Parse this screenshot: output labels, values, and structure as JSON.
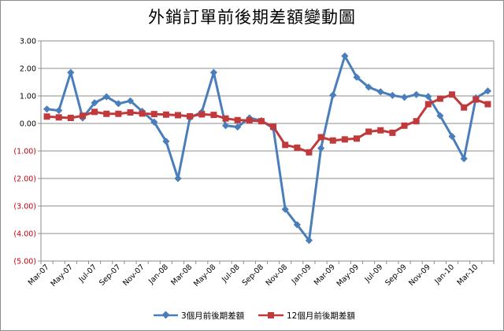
{
  "chart_data": {
    "type": "line",
    "title": "外銷訂單前後期差額變動圖",
    "ylim": [
      -5,
      3
    ],
    "y_ticks": [
      3,
      2,
      1,
      0,
      -1,
      -2,
      -3,
      -4,
      -5
    ],
    "y_tick_labels": [
      "3.00",
      "2.00",
      "1.00",
      "0.00",
      "(1.00)",
      "(2.00)",
      "(3.00)",
      "(4.00)",
      "(5.00)"
    ],
    "categories": [
      "Mar-07",
      "Apr-07",
      "May-07",
      "Jun-07",
      "Jul-07",
      "Aug-07",
      "Sep-07",
      "Oct-07",
      "Nov-07",
      "Dec-07",
      "Jan-08",
      "Feb-08",
      "Mar-08",
      "Apr-08",
      "May-08",
      "Jun-08",
      "Jul-08",
      "Aug-08",
      "Sep-08",
      "Oct-08",
      "Nov-08",
      "Dec-08",
      "Jan-09",
      "Feb-09",
      "Mar-09",
      "Apr-09",
      "May-09",
      "Jun-09",
      "Jul-09",
      "Aug-09",
      "Sep-09",
      "Oct-09",
      "Nov-09",
      "Dec-09",
      "Jan-10",
      "Feb-10",
      "Mar-10",
      "Apr-10"
    ],
    "x_tick_labels": [
      "Mar-07",
      "May-07",
      "Jul-07",
      "Sep-07",
      "Nov-07",
      "Jan-08",
      "Mar-08",
      "May-08",
      "Jul-08",
      "Sep-08",
      "Nov-08",
      "Jan-09",
      "Mar-09",
      "May-09",
      "Jul-09",
      "Sep-09",
      "Nov-09",
      "Jan-10",
      "Mar-10"
    ],
    "grid": true,
    "legend_position": "bottom",
    "series": [
      {
        "name": "3個月前後期差額",
        "color": "#4a7ebb",
        "marker": "diamond",
        "values": [
          0.52,
          0.47,
          1.85,
          0.2,
          0.75,
          0.97,
          0.72,
          0.82,
          0.44,
          0.05,
          -0.65,
          -2.0,
          0.2,
          0.42,
          1.85,
          -0.08,
          -0.13,
          0.2,
          0.1,
          -0.18,
          -3.12,
          -3.68,
          -4.25,
          -0.9,
          1.03,
          2.45,
          1.68,
          1.32,
          1.15,
          1.02,
          0.95,
          1.05,
          0.98,
          0.28,
          -0.47,
          -1.28,
          0.93,
          1.18
        ]
      },
      {
        "name": "12個月前後期差額",
        "color": "#c0393b",
        "marker": "square",
        "values": [
          0.25,
          0.22,
          0.2,
          0.28,
          0.42,
          0.35,
          0.35,
          0.4,
          0.36,
          0.34,
          0.32,
          0.3,
          0.26,
          0.33,
          0.31,
          0.18,
          0.12,
          0.11,
          0.08,
          -0.12,
          -0.78,
          -0.88,
          -1.05,
          -0.5,
          -0.62,
          -0.58,
          -0.55,
          -0.3,
          -0.25,
          -0.34,
          -0.08,
          0.08,
          0.7,
          0.9,
          1.05,
          0.58,
          0.87,
          0.7
        ]
      }
    ]
  }
}
